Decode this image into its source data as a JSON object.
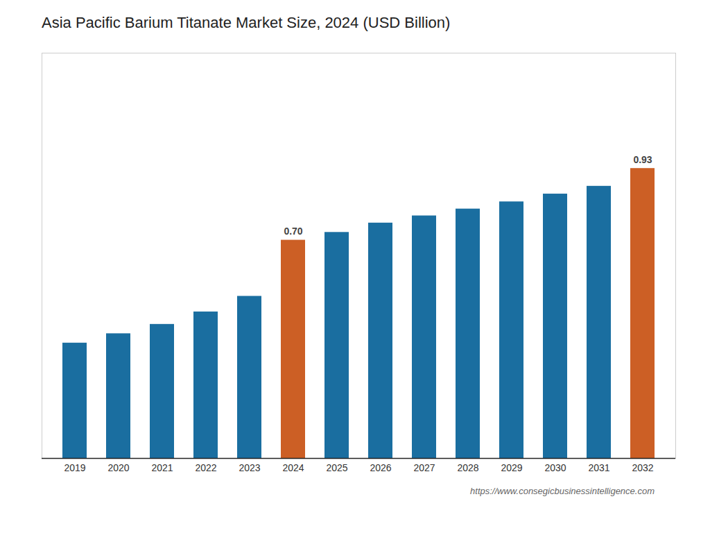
{
  "chart_data": {
    "type": "bar",
    "title": "Asia Pacific Barium Titanate Market Size, 2024 (USD Billion)",
    "categories": [
      "2019",
      "2020",
      "2021",
      "2022",
      "2023",
      "2024",
      "2025",
      "2026",
      "2027",
      "2028",
      "2029",
      "2030",
      "2031",
      "2032"
    ],
    "values": [
      0.37,
      0.4,
      0.43,
      0.47,
      0.52,
      0.7,
      0.725,
      0.755,
      0.778,
      0.8,
      0.823,
      0.848,
      0.873,
      0.93
    ],
    "colors": [
      "#1a6ea0",
      "#1a6ea0",
      "#1a6ea0",
      "#1a6ea0",
      "#1a6ea0",
      "#cc5f25",
      "#1a6ea0",
      "#1a6ea0",
      "#1a6ea0",
      "#1a6ea0",
      "#1a6ea0",
      "#1a6ea0",
      "#1a6ea0",
      "#cc5f25"
    ],
    "value_labels": [
      null,
      null,
      null,
      null,
      null,
      "0.70",
      null,
      null,
      null,
      null,
      null,
      null,
      null,
      "0.93"
    ],
    "data_labels": true,
    "ylim": [
      0,
      1.3
    ],
    "tick_labels": "x",
    "grid": false,
    "annotations": [
      "https://www.consegicbusinessintelligence.com"
    ]
  }
}
